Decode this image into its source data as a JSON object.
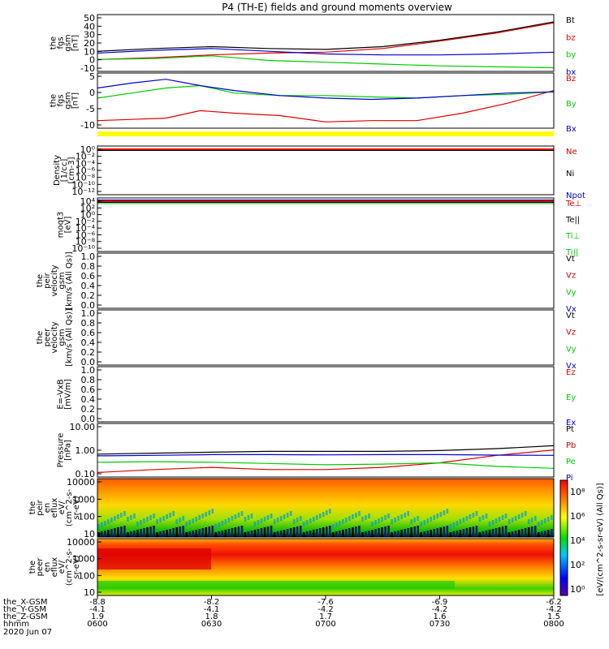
{
  "title": "P4 (TH-E) fields and ground moments overview",
  "date_label": "2020 Jun 07",
  "chart_data": [
    {
      "type": "line",
      "name": "fgs_gsm_total",
      "ylabel": [
        "the",
        "fgs",
        "gsm",
        "[nT]"
      ],
      "yticks": [
        "50",
        "40",
        "30",
        "20",
        "10",
        "0",
        "-10"
      ],
      "ylim": [
        -10,
        52
      ],
      "legend": [
        {
          "label": "Bt",
          "color": "#000000"
        },
        {
          "label": "bz",
          "color": "#dd0000"
        },
        {
          "label": "by",
          "color": "#00cc00"
        },
        {
          "label": "bx",
          "color": "#0000cc"
        }
      ],
      "x_hours": [
        6.0,
        6.25,
        6.5,
        6.75,
        7.0,
        7.25,
        7.5,
        7.75,
        8.0
      ],
      "series": [
        {
          "color": "#000000",
          "values": [
            12,
            15,
            17,
            15,
            14,
            17,
            24,
            33,
            44
          ]
        },
        {
          "color": "#dd0000",
          "values": [
            3,
            5,
            8,
            10,
            11,
            15,
            23,
            32,
            43
          ]
        },
        {
          "color": "#00cc00",
          "values": [
            3,
            4,
            7,
            2,
            0,
            -2,
            -4,
            -5,
            -6
          ]
        },
        {
          "color": "#0000cc",
          "values": [
            10,
            13,
            15,
            12,
            9,
            8,
            8,
            9,
            11
          ]
        }
      ]
    },
    {
      "type": "line",
      "name": "fgs_gsm_components",
      "ylabel": [
        "the",
        "fgs",
        "gsm",
        "[nT]"
      ],
      "yticks": [
        "5",
        "0",
        "-5",
        "-10"
      ],
      "ylim": [
        -13,
        9
      ],
      "legend": [
        {
          "label": "Bz",
          "color": "#dd0000"
        },
        {
          "label": "By",
          "color": "#00cc00"
        },
        {
          "label": "Bx",
          "color": "#0000cc"
        }
      ],
      "x_hours": [
        6.0,
        6.15,
        6.3,
        6.45,
        6.6,
        6.8,
        7.0,
        7.2,
        7.4,
        7.6,
        7.8,
        8.0
      ],
      "series": [
        {
          "color": "#dd0000",
          "values": [
            -10,
            -9.5,
            -9,
            -6,
            -7,
            -8,
            -10.5,
            -10,
            -10,
            -7,
            -3,
            2
          ]
        },
        {
          "color": "#00cc00",
          "values": [
            -1,
            1,
            3,
            4,
            1,
            0,
            0,
            -0.5,
            -1,
            0,
            0.5,
            1.5
          ]
        },
        {
          "color": "#0000cc",
          "values": [
            3,
            5,
            6.5,
            4,
            2,
            0,
            -1,
            -1.5,
            -1,
            0,
            1,
            1.5
          ]
        }
      ]
    },
    {
      "type": "line",
      "name": "density",
      "ylabel": [
        "Density",
        "[1/cc]",
        "[cm-3]"
      ],
      "yticks": [
        "10⁰",
        "10⁻²",
        "10⁻⁴",
        "10⁻⁶",
        "10⁻⁸",
        "10⁻¹⁰",
        "10⁻¹²"
      ],
      "legend": [
        {
          "label": "Ne",
          "color": "#dd0000"
        },
        {
          "label": "Ni",
          "color": "#000000"
        },
        {
          "label": "Npot",
          "color": "#0000cc"
        }
      ]
    },
    {
      "type": "line",
      "name": "temperature",
      "ylabel": [
        "moqt3",
        "[eV]"
      ],
      "yticks": [
        "10⁴",
        "10²",
        "10⁰",
        "10⁻²",
        "10⁻⁴",
        "10⁻⁶",
        "10⁻⁸",
        "10⁻¹⁰"
      ],
      "legend": [
        {
          "label": "Te⊥",
          "color": "#dd0000"
        },
        {
          "label": "Te||",
          "color": "#000000"
        },
        {
          "label": "Ti⊥",
          "color": "#00cc00"
        },
        {
          "label": "Ti||",
          "color": "#00cc00"
        }
      ]
    },
    {
      "type": "line",
      "name": "peir_velocity",
      "ylabel": [
        "the",
        "peir",
        "velocity",
        "gsm",
        "[km/s (All Qs)]"
      ],
      "yticks": [
        "1.0",
        "0.8",
        "0.6",
        "0.4",
        "0.2",
        "0.0"
      ],
      "legend": [
        {
          "label": "Vt",
          "color": "#000000"
        },
        {
          "label": "Vz",
          "color": "#dd0000"
        },
        {
          "label": "Vy",
          "color": "#00cc00"
        },
        {
          "label": "Vx",
          "color": "#0000cc"
        }
      ]
    },
    {
      "type": "line",
      "name": "peer_velocity",
      "ylabel": [
        "the",
        "peer",
        "velocity",
        "gsm",
        "[km/s (All Qs)]"
      ],
      "yticks": [
        "1.0",
        "0.8",
        "0.6",
        "0.4",
        "0.2",
        "0.0"
      ],
      "legend": [
        {
          "label": "Vt",
          "color": "#000000"
        },
        {
          "label": "Vz",
          "color": "#dd0000"
        },
        {
          "label": "Vy",
          "color": "#00cc00"
        },
        {
          "label": "Vx",
          "color": "#0000cc"
        }
      ]
    },
    {
      "type": "line",
      "name": "efield",
      "ylabel": [
        "E=-VxB",
        "[mV/m]"
      ],
      "yticks": [
        "1.0",
        "0.8",
        "0.6",
        "0.4",
        "0.2",
        "0.0"
      ],
      "legend": [
        {
          "label": "Ez",
          "color": "#dd0000"
        },
        {
          "label": "Ey",
          "color": "#00cc00"
        },
        {
          "label": "Ex",
          "color": "#0000cc"
        }
      ]
    },
    {
      "type": "line",
      "name": "pressure",
      "ylabel": [
        "Pressure",
        "[nPa]"
      ],
      "yticks": [
        "10.00",
        "1.00",
        "0.10"
      ],
      "ylog": true,
      "ylim": [
        0.03,
        13
      ],
      "legend": [
        {
          "label": "Pt",
          "color": "#000000"
        },
        {
          "label": "Pb",
          "color": "#dd0000"
        },
        {
          "label": "Pe",
          "color": "#00cc00"
        },
        {
          "label": "Pi",
          "color": "#0000cc"
        }
      ],
      "x_hours": [
        6.0,
        6.25,
        6.5,
        6.75,
        7.0,
        7.25,
        7.5,
        7.75,
        8.0
      ],
      "series": [
        {
          "color": "#000000",
          "values": [
            0.4,
            0.45,
            0.5,
            0.55,
            0.55,
            0.55,
            0.6,
            0.75,
            1.05
          ]
        },
        {
          "color": "#dd0000",
          "values": [
            0.05,
            0.07,
            0.09,
            0.07,
            0.07,
            0.09,
            0.15,
            0.35,
            0.65
          ]
        },
        {
          "color": "#00cc00",
          "values": [
            0.16,
            0.17,
            0.16,
            0.14,
            0.12,
            0.13,
            0.15,
            0.1,
            0.08
          ]
        },
        {
          "color": "#0000cc",
          "values": [
            0.33,
            0.35,
            0.38,
            0.38,
            0.37,
            0.38,
            0.38,
            0.36,
            0.35
          ]
        }
      ]
    },
    {
      "type": "heatmap",
      "name": "peir_energy_flux",
      "ylabel": [
        "the",
        "peir",
        "en",
        "eflux",
        "eV/",
        "(cm^2-s-",
        "sr-eV)"
      ],
      "yticks": [
        "10000",
        "1000",
        "100",
        "10"
      ]
    },
    {
      "type": "heatmap",
      "name": "peer_energy_flux",
      "ylabel": [
        "the",
        "peer",
        "en",
        "eflux",
        "eV/",
        "(cm^2-s-",
        "sr-eV)"
      ],
      "yticks": [
        "10000",
        "1000",
        "100",
        "10"
      ]
    }
  ],
  "colorbar": {
    "label": "[eV/(cm^2-s-sr-eV) (All Qs)]",
    "ticks": [
      "10⁸",
      "10⁶",
      "10⁴",
      "10²",
      "10⁰"
    ]
  },
  "xaxis": {
    "rows": [
      {
        "label": "the_X-GSM",
        "values": [
          "-8.8",
          "-8.2",
          "-7.6",
          "-6.9",
          "-6.2"
        ]
      },
      {
        "label": "the_Y-GSM",
        "values": [
          "-4.1",
          "-4.1",
          "-4.2",
          "-4.2",
          "-4.2"
        ]
      },
      {
        "label": "the_Z-GSM",
        "values": [
          "1.9",
          "1.8",
          "1.7",
          "1.6",
          "1.5"
        ]
      },
      {
        "label": "hhmm",
        "values": [
          "0600",
          "0630",
          "0700",
          "0730",
          "0800"
        ]
      }
    ]
  }
}
